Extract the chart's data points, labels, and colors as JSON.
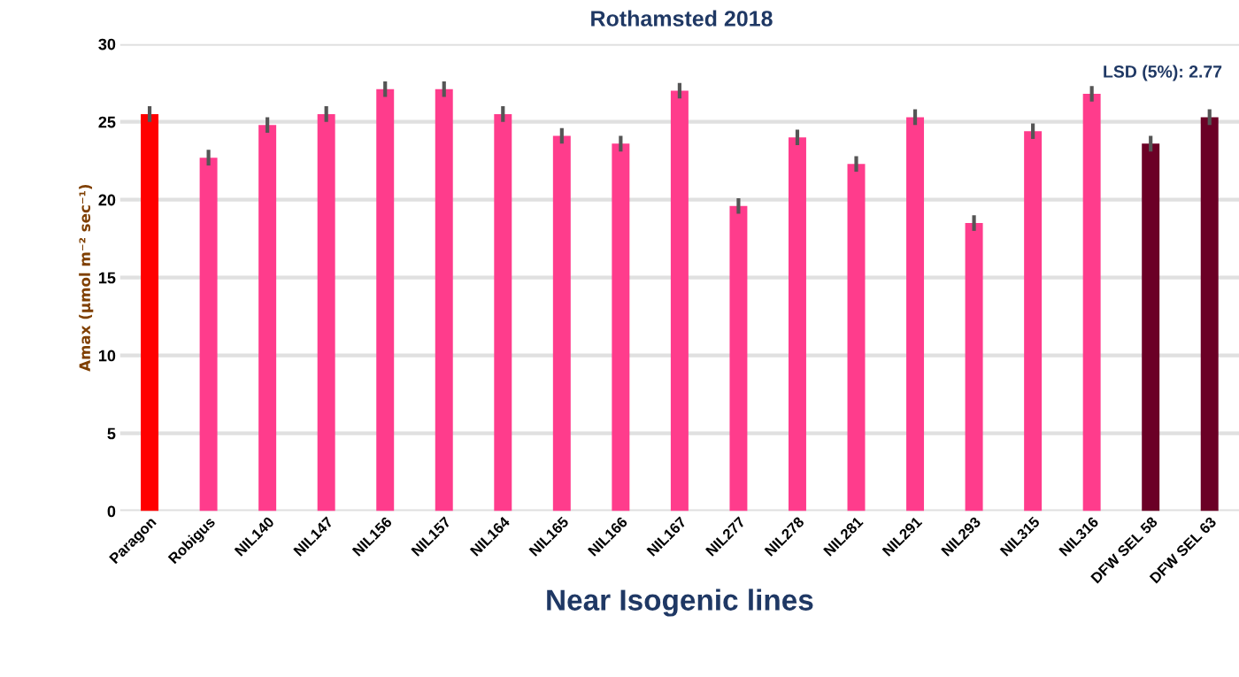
{
  "chart_data": {
    "type": "bar",
    "title": "Rothamsted 2018",
    "xlabel": "Near Isogenic lines",
    "ylabel": "Amax (µmol m⁻² sec⁻¹)",
    "categories": [
      "Paragon",
      "Robigus",
      "NIL140",
      "NIL147",
      "NIL156",
      "NIL157",
      "NIL164",
      "NIL165",
      "NIL166",
      "NIL167",
      "NIL277",
      "NIL278",
      "NIL281",
      "NIL291",
      "NIL293",
      "NIL315",
      "NIL316",
      "DFW SEL 58",
      "DFW SEL 63"
    ],
    "values": [
      25.5,
      22.7,
      24.8,
      25.5,
      27.1,
      27.1,
      25.5,
      24.1,
      23.6,
      27.0,
      19.6,
      24.0,
      22.3,
      25.3,
      18.5,
      24.4,
      26.8,
      23.6,
      25.3
    ],
    "errors": [
      0.5,
      0.5,
      0.5,
      0.5,
      0.5,
      0.5,
      0.5,
      0.5,
      0.5,
      0.5,
      0.5,
      0.5,
      0.5,
      0.5,
      0.5,
      0.5,
      0.5,
      0.5,
      0.5
    ],
    "colors": [
      "#ff0000",
      "#ff3c8c",
      "#ff3c8c",
      "#ff3c8c",
      "#ff3c8c",
      "#ff3c8c",
      "#ff3c8c",
      "#ff3c8c",
      "#ff3c8c",
      "#ff3c8c",
      "#ff3c8c",
      "#ff3c8c",
      "#ff3c8c",
      "#ff3c8c",
      "#ff3c8c",
      "#ff3c8c",
      "#ff3c8c",
      "#6b0026",
      "#6b0026"
    ],
    "ylim": [
      0,
      30
    ],
    "yticks": [
      0,
      5,
      10,
      15,
      20,
      25,
      30
    ],
    "grid": "y",
    "annotations": [
      "LSD (5%): 2.77"
    ]
  }
}
